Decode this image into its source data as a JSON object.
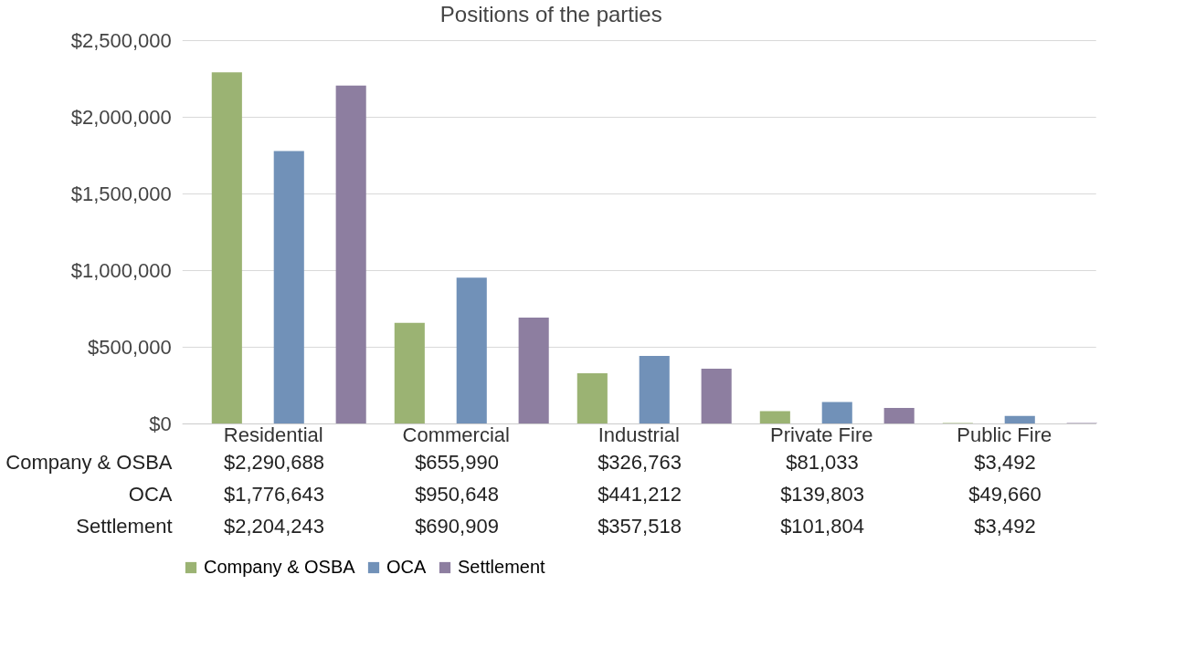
{
  "chart_data": {
    "type": "bar",
    "title": "Positions of the parties",
    "categories": [
      "Residential",
      "Commercial",
      "Industrial",
      "Private Fire",
      "Public Fire"
    ],
    "series": [
      {
        "name": "Company & OSBA",
        "color": "#9bb373",
        "values": [
          2290688,
          655990,
          326763,
          81033,
          3492
        ],
        "value_labels": [
          "$2,290,688",
          "$655,990",
          "$326,763",
          "$81,033",
          "$3,492"
        ]
      },
      {
        "name": "OCA",
        "color": "#7191b8",
        "values": [
          1776643,
          950648,
          441212,
          139803,
          49660
        ],
        "value_labels": [
          "$1,776,643",
          "$950,648",
          "$441,212",
          "$139,803",
          "$49,660"
        ]
      },
      {
        "name": "Settlement",
        "color": "#8d7ea0",
        "values": [
          2204243,
          690909,
          357518,
          101804,
          3492
        ],
        "value_labels": [
          "$2,204,243",
          "$690,909",
          "$357,518",
          "$101,804",
          "$3,492"
        ]
      }
    ],
    "ylim": [
      0,
      2500000
    ],
    "yticks": [
      {
        "value": 0,
        "label": "$0"
      },
      {
        "value": 500000,
        "label": "$500,000"
      },
      {
        "value": 1000000,
        "label": "$1,000,000"
      },
      {
        "value": 1500000,
        "label": "$1,500,000"
      },
      {
        "value": 2000000,
        "label": "$2,000,000"
      },
      {
        "value": 2500000,
        "label": "$2,500,000"
      }
    ],
    "grid": "y",
    "legend": "bottom"
  }
}
